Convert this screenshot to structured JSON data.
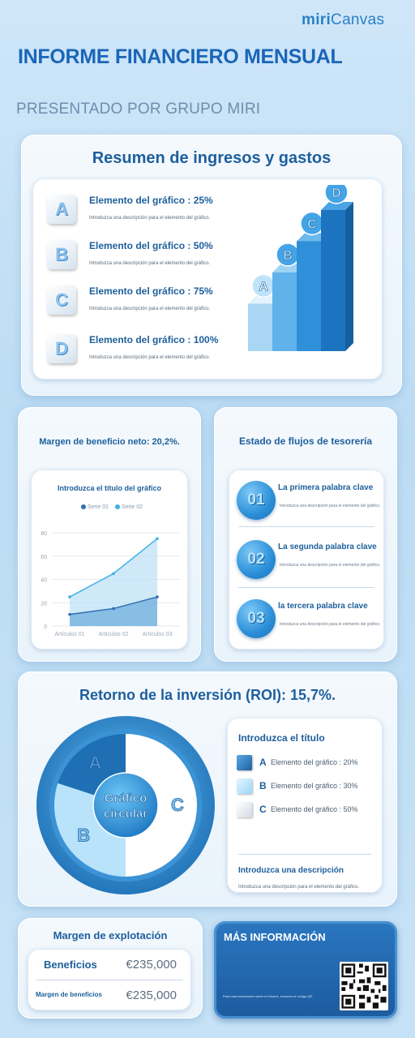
{
  "brand": {
    "logo_bold": "miri",
    "logo_light": "Canvas"
  },
  "header": {
    "title": "INFORME FINANCIERO MENSUAL",
    "subtitle": "PRESENTADO POR GRUPO MIRI"
  },
  "summary": {
    "heading": "Resumen de ingresos y gastos",
    "steps": [
      {
        "letter": "A",
        "title": "Elemento del gráfico : 25%",
        "desc": "Introduzca una descripción para el elemento del gráfico."
      },
      {
        "letter": "B",
        "title": "Elemento del gráfico : 50%",
        "desc": "Introduzca una descripción para el elemento del gráfico."
      },
      {
        "letter": "C",
        "title": "Elemento del gráfico : 75%",
        "desc": "Introduzca una descripción para el elemento del gráfico."
      },
      {
        "letter": "D",
        "title": "Elemento del gráfico : 100%",
        "desc": "Introduzca una descripción para el elemento del gráfico."
      }
    ],
    "stair_values": [
      25,
      50,
      75,
      100
    ],
    "stair_letters": [
      "A",
      "B",
      "C",
      "D"
    ]
  },
  "profit": {
    "heading": "Margen de beneficio neto: 20,2%.",
    "chart_title": "Introduzca el título del gráfico"
  },
  "chart_data": {
    "type": "area",
    "title": "Introduzca el título del gráfico",
    "categories": [
      "Artículos 01",
      "Artículos 02",
      "Artículos 03"
    ],
    "series": [
      {
        "name": "Serie 01",
        "values": [
          10,
          15,
          25
        ],
        "color": "#2f6fb0"
      },
      {
        "name": "Serie 02",
        "values": [
          25,
          45,
          75
        ],
        "color": "#3fb0e6"
      }
    ],
    "y_ticks": [
      "0",
      "20",
      "40",
      "60",
      "80"
    ],
    "ylim": [
      0,
      80
    ],
    "grid": true,
    "legend": "top"
  },
  "cashflow": {
    "heading": "Estado de flujos de tesorería",
    "items": [
      {
        "num": "01",
        "title": "La primera palabra clave",
        "desc": "Introduzca una descripción para el elemento del gráfico."
      },
      {
        "num": "02",
        "title": "La segunda palabra clave",
        "desc": "Introduzca una descripción para el elemento del gráfico."
      },
      {
        "num": "03",
        "title": "la tercera palabra clave",
        "desc": "Introduzca una descripción para el elemento del gráfico."
      }
    ]
  },
  "roi": {
    "heading": "Retorno de la inversión (ROI): 15,7%.",
    "center_line1": "Gráfico",
    "center_line2": "circular",
    "slices": [
      {
        "letter": "A",
        "value": 20,
        "color": "#1f6fb5"
      },
      {
        "letter": "B",
        "value": 30,
        "color": "#b8e3fb"
      },
      {
        "letter": "C",
        "value": 50,
        "color": "#ffffff"
      }
    ],
    "legend_title": "Introduzca el título",
    "legend_items": [
      {
        "letter": "A",
        "label": "Elemento del gráfico : 20%",
        "color": "#2a7cc4"
      },
      {
        "letter": "B",
        "label": "Elemento del gráfico : 30%",
        "color": "#b8e3fb"
      },
      {
        "letter": "C",
        "label": "Elemento del gráfico : 50%",
        "color": "#ffffff"
      }
    ],
    "desc_title": "Introduzca una descripción",
    "desc": "Introduzca una descripción para el elemento del gráfico."
  },
  "operating": {
    "heading": "Margen de explotación",
    "rows": [
      {
        "label": "Beneficios",
        "value": "€235,000"
      },
      {
        "label": "Margen de beneficios",
        "value": "€235,000"
      }
    ]
  },
  "more_info": {
    "title": "MÁS INFORMACIÓN",
    "text": "Para más información sobre el informe, escanee el código QR."
  },
  "colors": {
    "accent": "#1a66b8",
    "heading": "#1d5f9c",
    "panel": "#f4f9fd"
  }
}
